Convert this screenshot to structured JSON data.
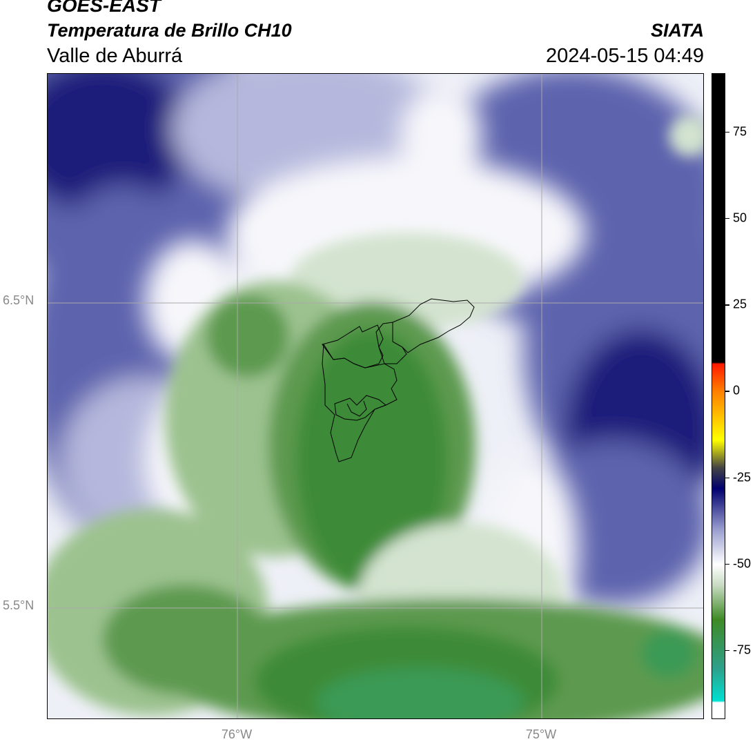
{
  "header": {
    "satellite": "GOES-EAST",
    "product": "Temperatura de Brillo CH10",
    "institution": "SIATA",
    "region": "Valle de Aburrá",
    "datetime": "2024-05-15 04:49"
  },
  "axes": {
    "lat_labels": [
      "6.5°N",
      "5.5°N"
    ],
    "lon_labels": [
      "76°W",
      "75°W"
    ]
  },
  "colorbar": {
    "tick_labels": [
      "75",
      "50",
      "25",
      "0",
      "-25",
      "-50",
      "-75"
    ],
    "tick_values": [
      75,
      50,
      25,
      0,
      -25,
      -50,
      -75
    ],
    "range": [
      -95,
      92
    ],
    "stops": [
      {
        "v": -95,
        "c": "#ffffff"
      },
      {
        "v": -90,
        "c": "#ffffff"
      },
      {
        "v": -89.5,
        "c": "#00e0d0"
      },
      {
        "v": -80,
        "c": "#2ea08a"
      },
      {
        "v": -66,
        "c": "#3e8a26"
      },
      {
        "v": -56,
        "c": "#c9dcc3"
      },
      {
        "v": -50,
        "c": "#ffffff"
      },
      {
        "v": -40,
        "c": "#9a9fcf"
      },
      {
        "v": -28,
        "c": "#00006e"
      },
      {
        "v": -22,
        "c": "#444444"
      },
      {
        "v": -14,
        "c": "#ffff00"
      },
      {
        "v": 0,
        "c": "#ff8000"
      },
      {
        "v": 8,
        "c": "#ff1a00"
      },
      {
        "v": 8.5,
        "c": "#000000"
      },
      {
        "v": 92,
        "c": "#000000"
      }
    ]
  },
  "map_colors": {
    "deep_blue": "#1a1f7a",
    "mid_blue": "#5d63ad",
    "light_blue": "#b5b8dc",
    "white": "#f7f7fb",
    "pale_green": "#d3e3cf",
    "light_green": "#9cc28f",
    "mid_green": "#5d9a4f",
    "dark_green": "#3e8b38",
    "teal_green": "#3a9a55",
    "outline": "#000000",
    "gridline": "#aaaaaa"
  }
}
